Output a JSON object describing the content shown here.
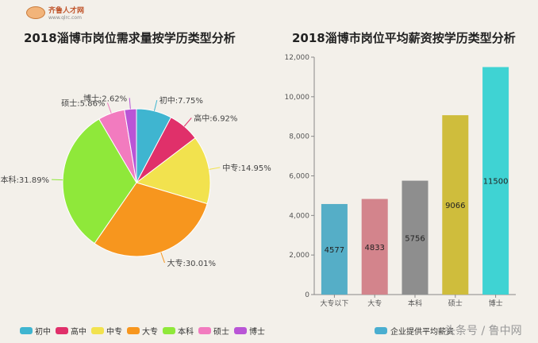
{
  "logo": {
    "name": "齐鲁人才网",
    "url": "www.qlrc.com"
  },
  "watermark": "头条号 / 鲁中网",
  "chart_data": [
    {
      "type": "pie",
      "title": "2018淄博市岗位需求量按学历类型分析",
      "slices": [
        {
          "label": "初中",
          "value": 7.75,
          "text": "初中:7.75%",
          "color": "#3fb5d0"
        },
        {
          "label": "高中",
          "value": 6.92,
          "text": "高中:6.92%",
          "color": "#e0306a"
        },
        {
          "label": "中专",
          "value": 14.95,
          "text": "中专:14.95%",
          "color": "#f2e24e"
        },
        {
          "label": "大专",
          "value": 30.01,
          "text": "大专:30.01%",
          "color": "#f7961e"
        },
        {
          "label": "本科",
          "value": 31.89,
          "text": "本科:31.89%",
          "color": "#8fe83a"
        },
        {
          "label": "硕士",
          "value": 5.86,
          "text": "硕士:5.86%",
          "color": "#f27bbf"
        },
        {
          "label": "博士",
          "value": 2.62,
          "text": "博士:2.62%",
          "color": "#b955d6"
        }
      ],
      "legend": "bottom"
    },
    {
      "type": "bar",
      "title": "2018淄博市岗位平均薪资按学历类型分析",
      "categories": [
        "大专以下",
        "大专",
        "本科",
        "硕士",
        "博士"
      ],
      "values": [
        4577,
        4833,
        5756,
        9066,
        11500
      ],
      "colors": [
        "#55aec7",
        "#d3848c",
        "#8e8e8e",
        "#cfbd3c",
        "#3fd3d3"
      ],
      "series_name": "企业提供平均薪资",
      "legend_color": "#4aaed0",
      "ylim": [
        0,
        12000
      ],
      "yticks": [
        "0",
        "2,000",
        "4,000",
        "6,000",
        "8,000",
        "10,000",
        "12,000"
      ],
      "legend": "bottom"
    }
  ]
}
